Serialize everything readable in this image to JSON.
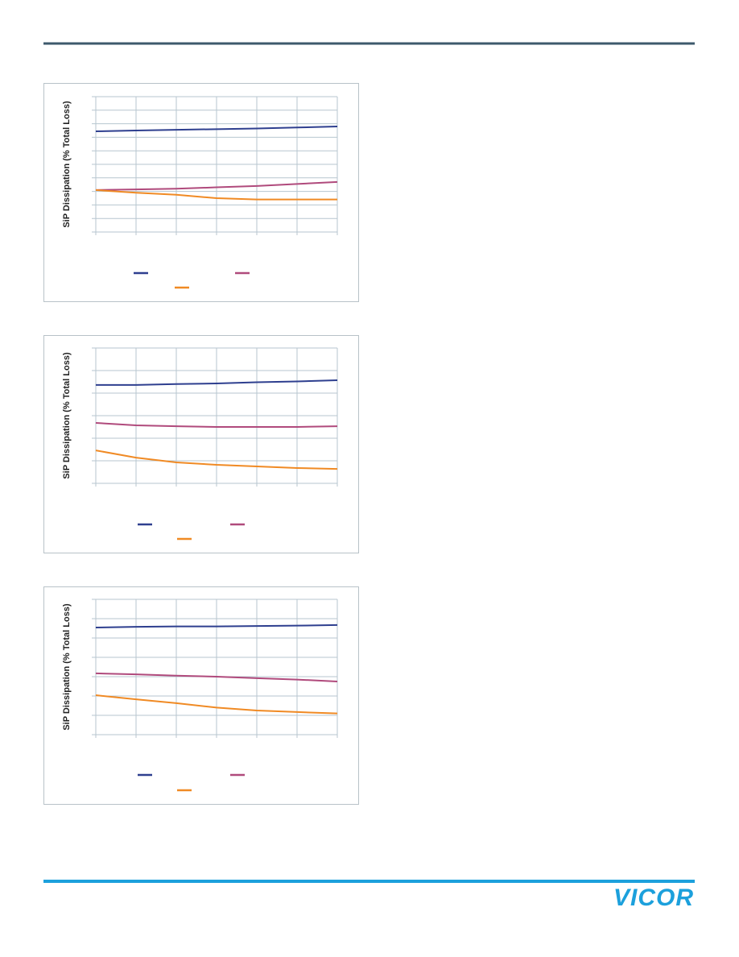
{
  "chart_data": [
    {
      "type": "line",
      "y_label": "SiP Dissipation (% Total Loss)",
      "ylim": [
        0,
        10
      ],
      "series": [
        {
          "color": "#2e3f8f",
          "values": [
            7.44,
            7.5,
            7.55,
            7.6,
            7.65,
            7.72,
            7.8
          ]
        },
        {
          "color": "#b04a7c",
          "values": [
            3.1,
            3.15,
            3.2,
            3.3,
            3.4,
            3.55,
            3.7
          ]
        },
        {
          "color": "#f08a24",
          "values": [
            3.1,
            2.9,
            2.75,
            2.5,
            2.4,
            2.4,
            2.4
          ]
        }
      ]
    },
    {
      "type": "line",
      "y_label": "SiP Dissipation (% Total Loss)",
      "ylim": [
        0,
        6
      ],
      "series": [
        {
          "color": "#2e3f8f",
          "values": [
            4.36,
            4.36,
            4.4,
            4.43,
            4.48,
            4.52,
            4.57
          ]
        },
        {
          "color": "#b04a7c",
          "values": [
            2.68,
            2.57,
            2.53,
            2.5,
            2.5,
            2.5,
            2.53
          ]
        },
        {
          "color": "#f08a24",
          "values": [
            1.46,
            1.14,
            0.93,
            0.82,
            0.75,
            0.68,
            0.64
          ]
        }
      ]
    },
    {
      "type": "line",
      "y_label": "SiP Dissipation (% Total Loss)",
      "ylim": [
        0,
        7
      ],
      "series": [
        {
          "color": "#2e3f8f",
          "values": [
            5.54,
            5.58,
            5.6,
            5.6,
            5.62,
            5.64,
            5.67
          ]
        },
        {
          "color": "#b04a7c",
          "values": [
            3.17,
            3.12,
            3.05,
            3.0,
            2.92,
            2.85,
            2.75
          ]
        },
        {
          "color": "#f08a24",
          "values": [
            2.04,
            1.83,
            1.63,
            1.4,
            1.25,
            1.17,
            1.1
          ]
        }
      ]
    }
  ],
  "logo": "VICOR"
}
